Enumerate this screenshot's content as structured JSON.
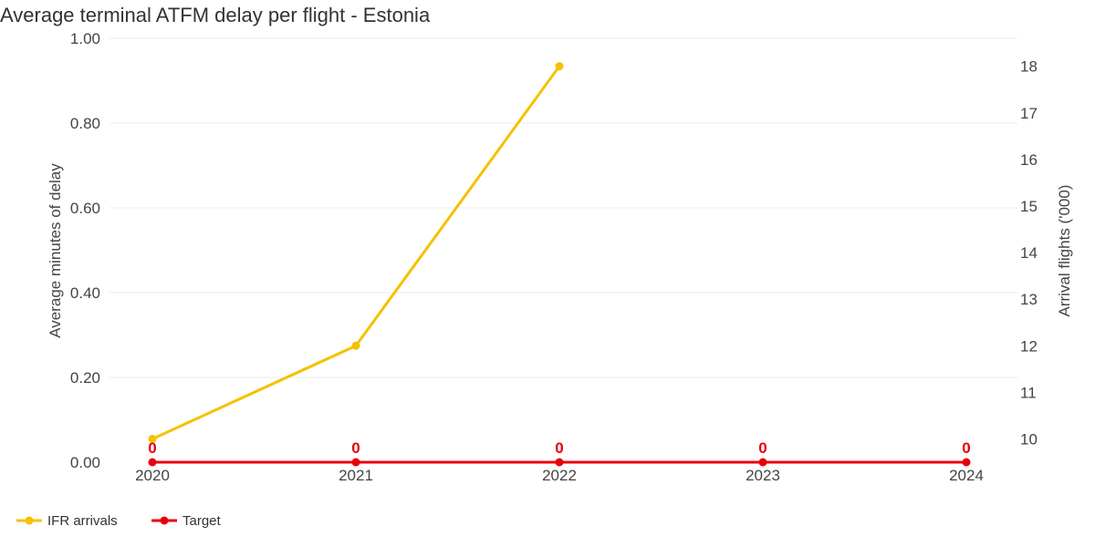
{
  "chart_data": {
    "type": "line",
    "title": "Average terminal ATFM delay per flight - Estonia",
    "categories": [
      "2020",
      "2021",
      "2022",
      "2023",
      "2024"
    ],
    "y_left": {
      "label": "Average minutes of delay",
      "range": [
        0,
        1
      ],
      "ticks": [
        "0.00",
        "0.20",
        "0.40",
        "0.60",
        "0.80",
        "1.00"
      ]
    },
    "y_right": {
      "label": "Arrival flights ('000)",
      "range": [
        9.5,
        18.6
      ],
      "ticks": [
        "10",
        "11",
        "12",
        "13",
        "14",
        "15",
        "16",
        "17",
        "18"
      ]
    },
    "series": [
      {
        "name": "IFR arrivals",
        "axis": "right",
        "color": "#f5c100",
        "values": [
          10.0,
          12.0,
          18.0,
          null,
          null
        ]
      },
      {
        "name": "Target",
        "axis": "left",
        "color": "#e8000b",
        "values": [
          0,
          0,
          0,
          0,
          0
        ],
        "data_labels": [
          "0",
          "0",
          "0",
          "0",
          "0"
        ]
      }
    ],
    "grid": true,
    "legend_position": "bottom-left"
  }
}
